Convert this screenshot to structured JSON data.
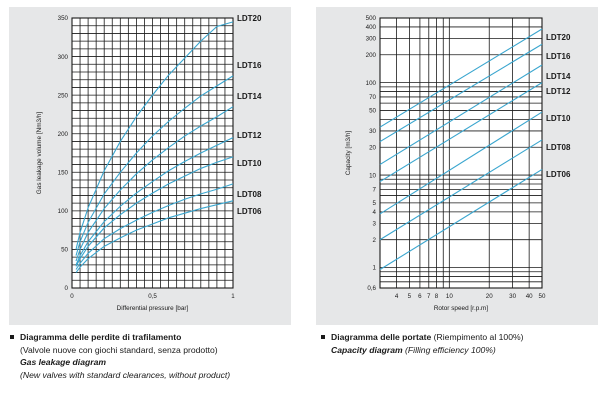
{
  "chart_data": [
    {
      "type": "line",
      "title": "",
      "xlabel": "Differential pressure [bar]",
      "ylabel": "Gas leakage volume [Nm3/h]",
      "xlim": [
        0,
        1
      ],
      "ylim": [
        0,
        350
      ],
      "x_scale": "linear",
      "y_scale": "linear",
      "grid": true,
      "xticks": [
        0,
        0.5,
        1
      ],
      "xtick_labels": [
        "0",
        "0,5",
        "1"
      ],
      "yticks": [
        0,
        50,
        100,
        150,
        200,
        250,
        300,
        350
      ],
      "ytick_labels": [
        "0",
        "50",
        "100",
        "150",
        "200",
        "250",
        "300",
        "350"
      ],
      "x": [
        0.025,
        0.05,
        0.1,
        0.2,
        0.3,
        0.4,
        0.5,
        0.6,
        0.7,
        0.8,
        0.9,
        1.0
      ],
      "series": [
        {
          "name": "LDT20",
          "values": [
            50,
            72,
            104,
            152,
            190,
            222,
            250,
            276,
            298,
            320,
            339,
            345
          ]
        },
        {
          "name": "LDT16",
          "values": [
            42,
            60,
            85,
            122,
            150,
            175,
            197,
            216,
            233,
            249,
            262,
            275
          ]
        },
        {
          "name": "LDT14",
          "values": [
            35,
            50,
            72,
            103,
            127,
            148,
            166,
            182,
            197,
            210,
            222,
            235
          ]
        },
        {
          "name": "LDT12",
          "values": [
            30,
            42,
            60,
            86,
            106,
            123,
            138,
            152,
            164,
            175,
            185,
            195
          ]
        },
        {
          "name": "LDT10",
          "values": [
            28,
            38,
            54,
            78,
            95,
            110,
            123,
            135,
            145,
            155,
            163,
            170
          ]
        },
        {
          "name": "LDT08",
          "values": [
            24,
            32,
            45,
            64,
            77,
            88,
            98,
            107,
            115,
            122,
            128,
            135
          ]
        },
        {
          "name": "LDT06",
          "values": [
            20,
            27,
            38,
            54,
            65,
            75,
            83,
            91,
            97,
            103,
            108,
            113
          ]
        }
      ],
      "line_color": "#3aa6cf",
      "grid_color": "#1a1a1a"
    },
    {
      "type": "line",
      "title": "",
      "xlabel": "Rotor speed [r.p.m]",
      "ylabel": "Capacity [m3/h]",
      "xlim": [
        3,
        50
      ],
      "ylim": [
        0.6,
        500
      ],
      "x_scale": "log",
      "y_scale": "log",
      "grid": true,
      "xticks": [
        4,
        5,
        6,
        7,
        8,
        10,
        20,
        30,
        40,
        50
      ],
      "xtick_labels": [
        "4",
        "5",
        "6",
        "7",
        "8",
        "10",
        "20",
        "30",
        "40",
        "50"
      ],
      "yticks": [
        0.6,
        1,
        2,
        3,
        4,
        5,
        7,
        10,
        20,
        30,
        50,
        70,
        100,
        200,
        300,
        400,
        500
      ],
      "ytick_labels": [
        "0,6",
        "1",
        "2",
        "3",
        "4",
        "5",
        "7",
        "10",
        "20",
        "30",
        "50",
        "70",
        "100",
        "200",
        "300",
        "400",
        "500"
      ],
      "x": [
        3,
        50
      ],
      "series": [
        {
          "name": "LDT20",
          "values": [
            33,
            380
          ]
        },
        {
          "name": "LDT16",
          "values": [
            23,
            260
          ]
        },
        {
          "name": "LDT14",
          "values": [
            13,
            155
          ]
        },
        {
          "name": "LDT12",
          "values": [
            8.5,
            100
          ]
        },
        {
          "name": "LDT10",
          "values": [
            3.8,
            48
          ]
        },
        {
          "name": "LDT08",
          "values": [
            2,
            24
          ]
        },
        {
          "name": "LDT06",
          "values": [
            0.95,
            11.5
          ]
        }
      ],
      "line_color": "#3aa6cf",
      "grid_color": "#1a1a1a"
    }
  ],
  "captions": {
    "left": {
      "title_it": "Diagramma delle perdite di trafilamento",
      "sub_it": "(Valvole nuove con giochi standard, senza prodotto)",
      "title_en": "Gas leakage diagram",
      "sub_en": "(New valves with standard clearances, without product)"
    },
    "right": {
      "title_it": "Diagramma delle portate",
      "sub_it": " (Riempimento al 100%)",
      "title_en": "Capacity diagram",
      "sub_en": " (Filling efficiency 100%)"
    }
  }
}
